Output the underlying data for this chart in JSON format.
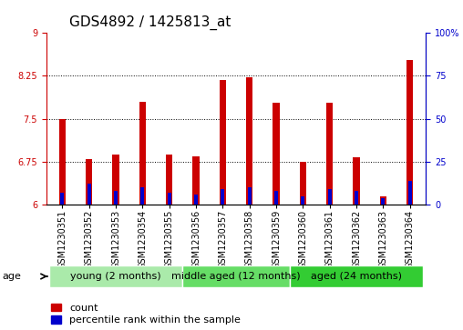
{
  "title": "GDS4892 / 1425813_at",
  "samples": [
    "GSM1230351",
    "GSM1230352",
    "GSM1230353",
    "GSM1230354",
    "GSM1230355",
    "GSM1230356",
    "GSM1230357",
    "GSM1230358",
    "GSM1230359",
    "GSM1230360",
    "GSM1230361",
    "GSM1230362",
    "GSM1230363",
    "GSM1230364"
  ],
  "count_values": [
    7.5,
    6.8,
    6.88,
    7.8,
    6.88,
    6.85,
    8.18,
    8.22,
    7.78,
    6.75,
    7.78,
    6.82,
    6.15,
    8.53
  ],
  "percentile_values": [
    7,
    12,
    8,
    10,
    7,
    6,
    9,
    10,
    8,
    5,
    9,
    8,
    4,
    14
  ],
  "base_value": 6.0,
  "ylim_left": [
    6.0,
    9.0
  ],
  "ylim_right": [
    0,
    100
  ],
  "yticks_left": [
    6.0,
    6.75,
    7.5,
    8.25,
    9.0
  ],
  "yticks_right": [
    0,
    25,
    50,
    75,
    100
  ],
  "ytick_labels_left": [
    "6",
    "6.75",
    "7.5",
    "8.25",
    "9"
  ],
  "ytick_labels_right": [
    "0",
    "25",
    "50",
    "75",
    "100%"
  ],
  "hlines": [
    6.75,
    7.5,
    8.25
  ],
  "groups": [
    {
      "label": "young (2 months)",
      "start": 0,
      "end": 5
    },
    {
      "label": "middle aged (12 months)",
      "start": 5,
      "end": 9
    },
    {
      "label": "aged (24 months)",
      "start": 9,
      "end": 14
    }
  ],
  "group_colors": [
    "#aaeaaa",
    "#66dd66",
    "#33cc33"
  ],
  "bar_width": 0.25,
  "count_color": "#CC0000",
  "percentile_color": "#0000CC",
  "bg_color": "#FFFFFF",
  "tick_label_color_left": "#CC0000",
  "tick_label_color_right": "#0000CC",
  "title_fontsize": 11,
  "tick_fontsize": 7,
  "label_fontsize": 8,
  "group_label_fontsize": 8,
  "age_fontsize": 8
}
